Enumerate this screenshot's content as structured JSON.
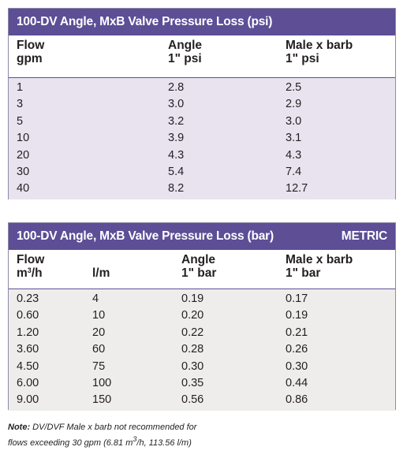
{
  "table_psi": {
    "title": "100-DV Angle, MxB Valve Pressure Loss (psi)",
    "headers": {
      "flow": [
        "Flow",
        "gpm"
      ],
      "angle": [
        "Angle",
        "1\" psi"
      ],
      "male_barb": [
        "Male x barb",
        "1\" psi"
      ]
    },
    "rows": [
      {
        "flow": "1",
        "angle": "2.8",
        "male_barb": "2.5"
      },
      {
        "flow": "3",
        "angle": "3.0",
        "male_barb": "2.9"
      },
      {
        "flow": "5",
        "angle": "3.2",
        "male_barb": "3.0"
      },
      {
        "flow": "10",
        "angle": "3.9",
        "male_barb": "3.1"
      },
      {
        "flow": "20",
        "angle": "4.3",
        "male_barb": "4.3"
      },
      {
        "flow": "30",
        "angle": "5.4",
        "male_barb": "7.4"
      },
      {
        "flow": "40",
        "angle": "8.2",
        "male_barb": "12.7"
      }
    ]
  },
  "table_bar": {
    "title": "100-DV Angle, MxB Valve Pressure Loss (bar)",
    "badge": "METRIC",
    "headers": {
      "flow": "Flow",
      "m3h": "m",
      "m3h_sup": "3",
      "m3h_unit": "/h",
      "lm": "l/m",
      "angle": [
        "Angle",
        "1\" bar"
      ],
      "male_barb": [
        "Male x barb",
        "1\" bar"
      ]
    },
    "rows": [
      {
        "m3h": "0.23",
        "lm": "4",
        "angle": "0.19",
        "male_barb": "0.17"
      },
      {
        "m3h": "0.60",
        "lm": "10",
        "angle": "0.20",
        "male_barb": "0.19"
      },
      {
        "m3h": "1.20",
        "lm": "20",
        "angle": "0.22",
        "male_barb": "0.21"
      },
      {
        "m3h": "3.60",
        "lm": "60",
        "angle": "0.28",
        "male_barb": "0.26"
      },
      {
        "m3h": "4.50",
        "lm": "75",
        "angle": "0.30",
        "male_barb": "0.30"
      },
      {
        "m3h": "6.00",
        "lm": "100",
        "angle": "0.35",
        "male_barb": "0.44"
      },
      {
        "m3h": "9.00",
        "lm": "150",
        "angle": "0.56",
        "male_barb": "0.86"
      }
    ]
  },
  "note": {
    "label": "Note:",
    "line1": "DV/DVF Male x barb not recommended for",
    "line2a": "flows exceeding 30 gpm (6.81 m",
    "line2_sup": "3",
    "line2b": "/h, 113.56 l/m)"
  }
}
